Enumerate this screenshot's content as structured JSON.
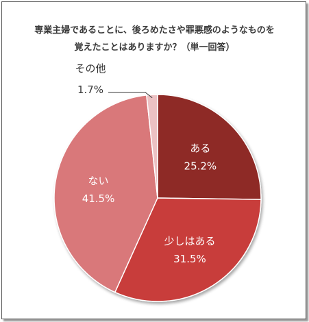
{
  "chart_data": {
    "type": "pie",
    "title_line1": "専業主婦であることに、後ろめたさや罪悪感のようなものを",
    "title_line2": "覚えたことはありますか？（単一回答）",
    "slices": [
      {
        "label": "ある",
        "value": 25.2,
        "value_text": "25.2%",
        "color": "#8e2b27"
      },
      {
        "label": "少しはある",
        "value": 31.5,
        "value_text": "31.5%",
        "color": "#c83d3b"
      },
      {
        "label": "ない",
        "value": 41.5,
        "value_text": "41.5%",
        "color": "#d9787a"
      },
      {
        "label": "その他",
        "value": 1.7,
        "value_text": "1.7%",
        "color": "#ecc1c3"
      }
    ],
    "start_angle_deg": 0,
    "direction": "clockwise",
    "legend": "none",
    "data_labels": "inside, callout for small slice"
  }
}
